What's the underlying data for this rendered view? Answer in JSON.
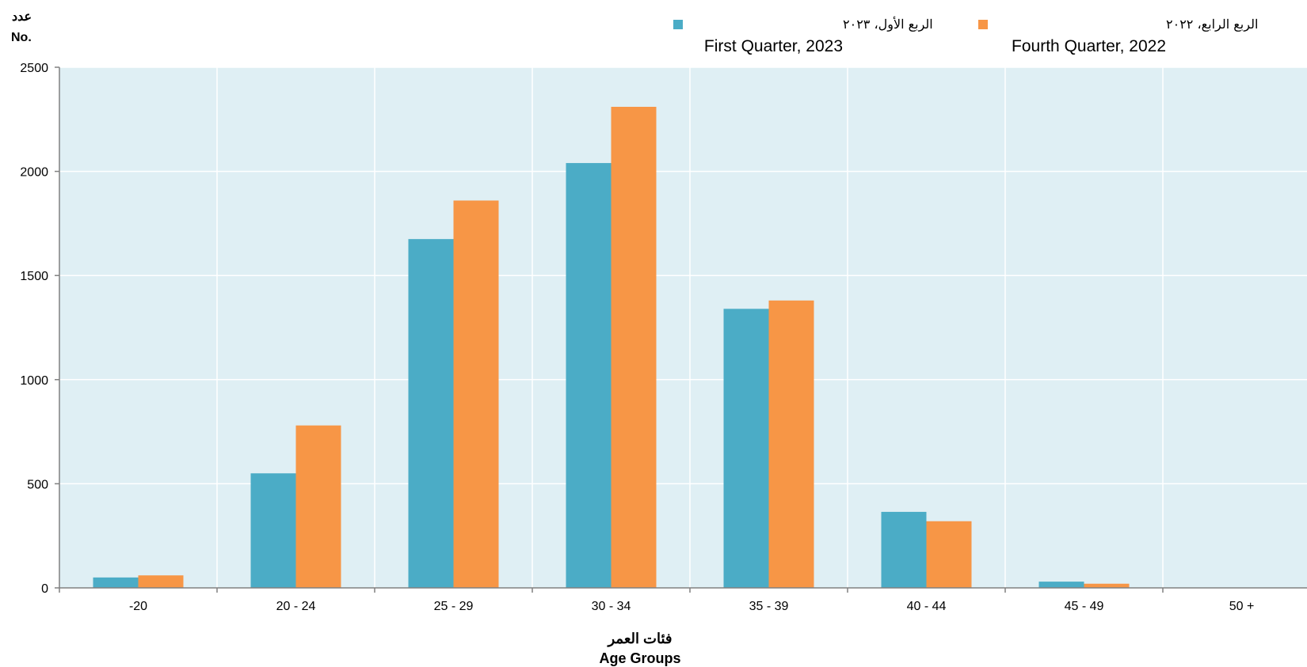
{
  "chart_data": {
    "type": "bar",
    "categories": [
      "-20",
      "20 - 24",
      "25 - 29",
      "30 - 34",
      "35 - 39",
      "40 - 44",
      "45 - 49",
      "50 +"
    ],
    "series": [
      {
        "name_ar": "الربع الأول، ٢٠٢٣",
        "name_en": "First Quarter, 2023",
        "color": "#4bacc6",
        "values": [
          50,
          550,
          1675,
          2040,
          1340,
          365,
          30,
          0
        ]
      },
      {
        "name_ar": "الربع الرابع، ٢٠٢٢",
        "name_en": "Fourth Quarter, 2022",
        "color": "#f79646",
        "values": [
          60,
          780,
          1860,
          2310,
          1380,
          320,
          20,
          0
        ]
      }
    ],
    "ylim": [
      0,
      2500
    ],
    "yticks": [
      0,
      500,
      1000,
      1500,
      2000,
      2500
    ],
    "ylabel_ar": "عدد",
    "ylabel_en": "No.",
    "xlabel_ar": "فئات العمر",
    "xlabel_en": "Age Groups",
    "grid": true,
    "legend_position": "top-right",
    "plot_background": "#dfeff4"
  }
}
